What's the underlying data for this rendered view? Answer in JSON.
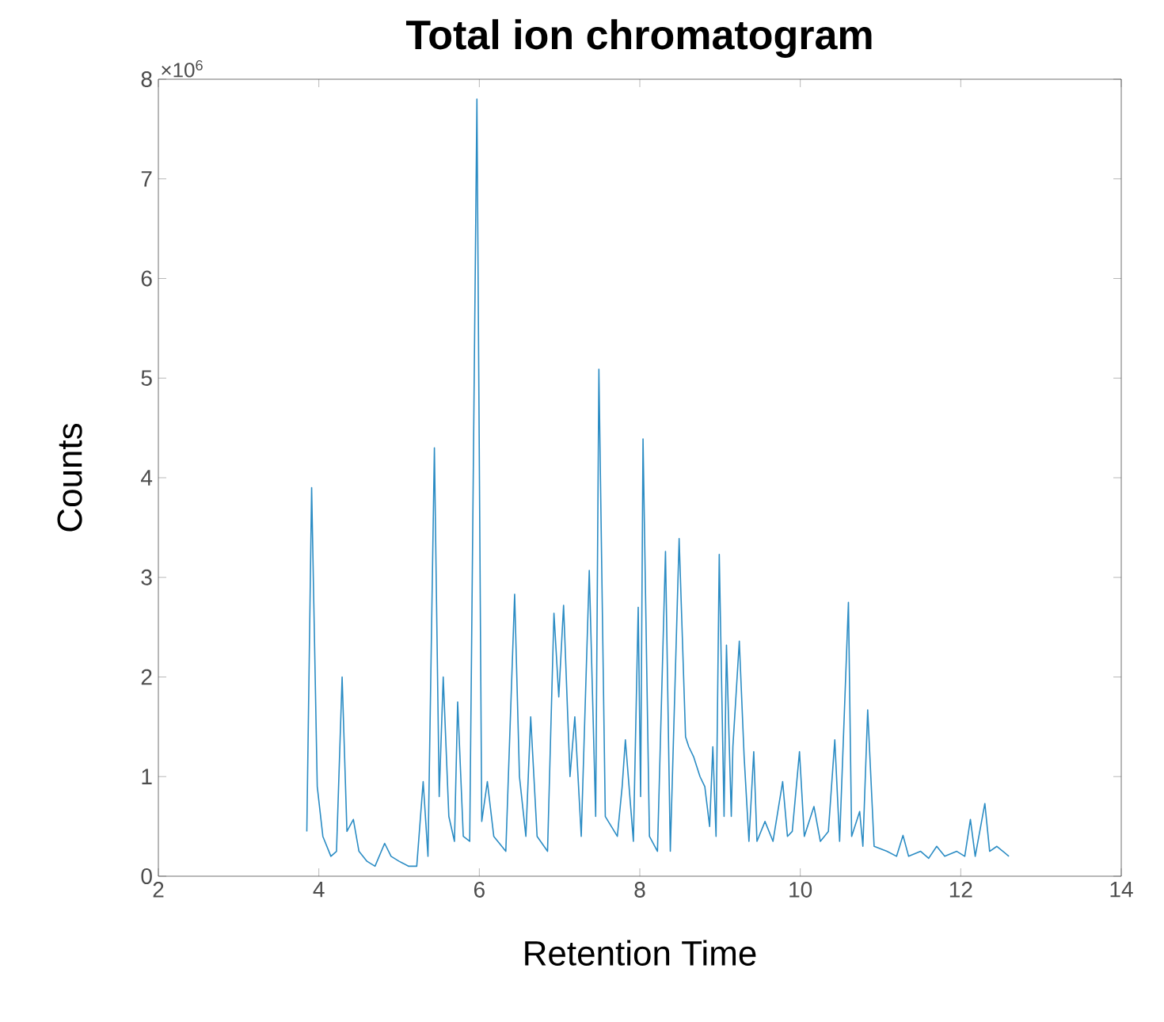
{
  "chart_data": {
    "type": "line",
    "title": "Total ion chromatogram",
    "xlabel": "Retention Time",
    "ylabel": "Counts",
    "annotations": [
      "×10$^{6}$"
    ],
    "xlim": [
      2,
      14
    ],
    "ylim": [
      0,
      8
    ],
    "xticks": [
      2,
      4,
      6,
      8,
      10,
      12,
      14
    ],
    "yticks": [
      0,
      1,
      2,
      3,
      4,
      5,
      6,
      7,
      8
    ],
    "series": [
      {
        "color": "#2b8cc4",
        "x": [
          3.85,
          3.91,
          3.98,
          4.05,
          4.15,
          4.22,
          4.29,
          4.35,
          4.43,
          4.5,
          4.6,
          4.7,
          4.82,
          4.9,
          5.0,
          5.12,
          5.22,
          5.3,
          5.36,
          5.44,
          5.5,
          5.55,
          5.62,
          5.69,
          5.73,
          5.8,
          5.88,
          5.97,
          6.03,
          6.1,
          6.18,
          6.33,
          6.44,
          6.5,
          6.58,
          6.64,
          6.72,
          6.85,
          6.93,
          6.99,
          7.05,
          7.13,
          7.19,
          7.27,
          7.37,
          7.45,
          7.49,
          7.57,
          7.72,
          7.78,
          7.82,
          7.92,
          7.98,
          8.01,
          8.04,
          8.12,
          8.22,
          8.32,
          8.38,
          8.49,
          8.53,
          8.57,
          8.61,
          8.67,
          8.75,
          8.81,
          8.87,
          8.91,
          8.95,
          8.99,
          9.05,
          9.08,
          9.14,
          9.16,
          9.24,
          9.3,
          9.36,
          9.42,
          9.46,
          9.56,
          9.66,
          9.78,
          9.84,
          9.9,
          9.99,
          10.05,
          10.17,
          10.25,
          10.35,
          10.43,
          10.49,
          10.6,
          10.64,
          10.74,
          10.78,
          10.84,
          10.92,
          11.08,
          11.2,
          11.28,
          11.35,
          11.5,
          11.6,
          11.7,
          11.8,
          11.95,
          12.05,
          12.12,
          12.18,
          12.3,
          12.36,
          12.45,
          12.6
        ],
        "values": [
          0.45,
          3.9,
          0.9,
          0.4,
          0.2,
          0.25,
          2.0,
          0.45,
          0.57,
          0.25,
          0.15,
          0.1,
          0.33,
          0.2,
          0.15,
          0.1,
          0.1,
          0.95,
          0.2,
          4.3,
          0.8,
          2.0,
          0.6,
          0.35,
          1.75,
          0.4,
          0.35,
          7.8,
          0.55,
          0.95,
          0.4,
          0.25,
          2.83,
          1.0,
          0.4,
          1.6,
          0.4,
          0.25,
          2.64,
          1.8,
          2.72,
          1.0,
          1.6,
          0.4,
          3.07,
          0.6,
          5.09,
          0.6,
          0.4,
          0.9,
          1.37,
          0.35,
          2.7,
          0.8,
          4.39,
          0.4,
          0.25,
          3.26,
          0.25,
          3.39,
          2.4,
          1.4,
          1.3,
          1.2,
          1.0,
          0.9,
          0.5,
          1.3,
          0.4,
          3.23,
          0.6,
          2.32,
          0.6,
          1.3,
          2.36,
          1.2,
          0.35,
          1.25,
          0.35,
          0.55,
          0.35,
          0.95,
          0.4,
          0.45,
          1.25,
          0.4,
          0.7,
          0.35,
          0.45,
          1.37,
          0.35,
          2.75,
          0.4,
          0.65,
          0.3,
          1.67,
          0.3,
          0.25,
          0.2,
          0.41,
          0.2,
          0.25,
          0.18,
          0.3,
          0.2,
          0.25,
          0.2,
          0.57,
          0.2,
          0.73,
          0.25,
          0.3,
          0.2
        ]
      }
    ]
  }
}
